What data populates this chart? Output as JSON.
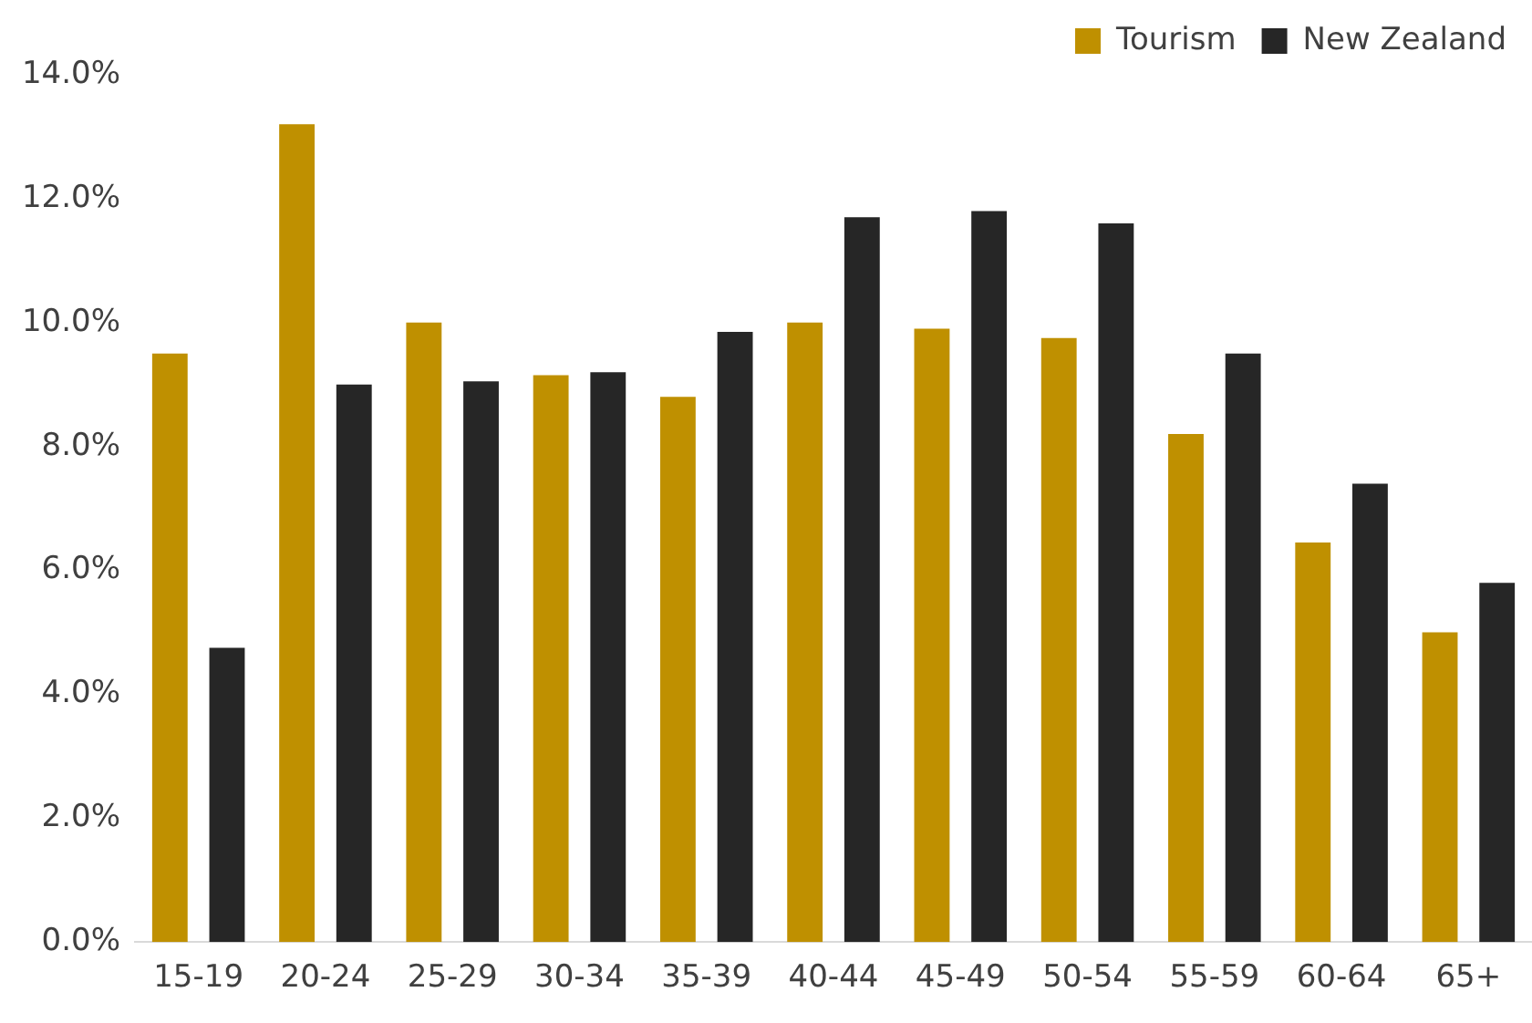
{
  "chart_data": {
    "type": "bar",
    "categories": [
      "15-19",
      "20-24",
      "25-29",
      "30-34",
      "35-39",
      "40-44",
      "45-49",
      "50-54",
      "55-59",
      "60-64",
      "65+"
    ],
    "series": [
      {
        "name": "Tourism",
        "color": "#bf9000",
        "values": [
          9.5,
          13.2,
          10.0,
          9.15,
          8.8,
          10.0,
          9.9,
          9.75,
          8.2,
          6.45,
          5.0
        ]
      },
      {
        "name": "New Zealand",
        "color": "#262626",
        "values": [
          4.75,
          9.0,
          9.05,
          9.2,
          9.85,
          11.7,
          11.8,
          11.6,
          9.5,
          7.4,
          5.8
        ]
      }
    ],
    "ylim": [
      0,
      14
    ],
    "yticks": [
      {
        "value": 0,
        "label": "0.0%"
      },
      {
        "value": 2,
        "label": "2.0%"
      },
      {
        "value": 4,
        "label": "4.0%"
      },
      {
        "value": 6,
        "label": "6.0%"
      },
      {
        "value": 8,
        "label": "8.0%"
      },
      {
        "value": 10,
        "label": "10.0%"
      },
      {
        "value": 12,
        "label": "12.0%"
      },
      {
        "value": 14,
        "label": "14.0%"
      }
    ],
    "grid": false,
    "legend": "top right"
  }
}
